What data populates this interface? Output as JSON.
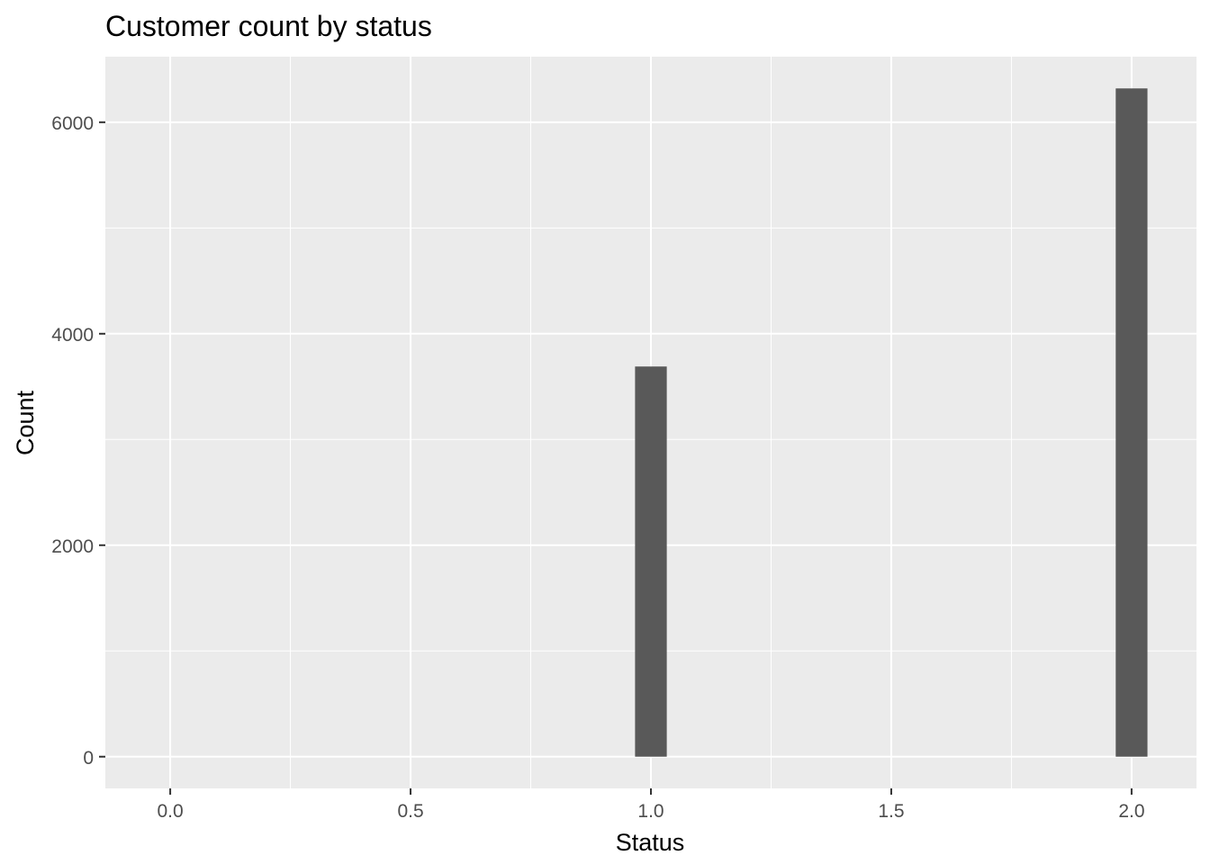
{
  "chart_data": {
    "type": "bar",
    "title": "Customer count by status",
    "xlabel": "Status",
    "ylabel": "Count",
    "x": [
      1.0,
      2.0
    ],
    "values": [
      3690,
      6320
    ],
    "bar_width": 0.066,
    "xlim": [
      -0.135,
      2.135
    ],
    "ylim": [
      -300,
      6620
    ],
    "x_ticks": [
      0.0,
      0.5,
      1.0,
      1.5,
      2.0
    ],
    "x_tick_labels": [
      "0.0",
      "0.5",
      "1.0",
      "1.5",
      "2.0"
    ],
    "x_minor_ticks": [
      0.25,
      0.75,
      1.25,
      1.75
    ],
    "y_ticks": [
      0,
      2000,
      4000,
      6000
    ],
    "y_tick_labels": [
      "0",
      "2000",
      "4000",
      "6000"
    ],
    "y_minor_ticks": [
      1000,
      3000,
      5000
    ],
    "grid": true,
    "legend": "none",
    "colors": {
      "panel": "#ebebeb",
      "grid": "#ffffff",
      "bar": "#595959",
      "tick": "#333333"
    }
  }
}
